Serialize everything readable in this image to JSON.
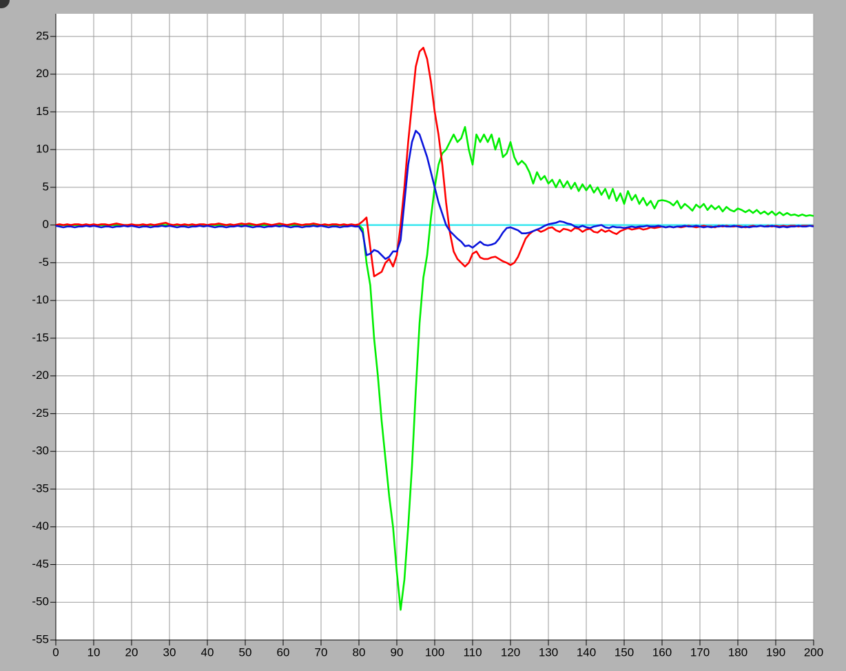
{
  "chart_data": {
    "type": "line",
    "xlim": [
      0,
      200
    ],
    "ylim": [
      -55,
      28
    ],
    "xticks": [
      0,
      10,
      20,
      30,
      40,
      50,
      60,
      70,
      80,
      90,
      100,
      110,
      120,
      130,
      140,
      150,
      160,
      170,
      180,
      190,
      200
    ],
    "yticks": [
      25,
      20,
      15,
      10,
      5,
      0,
      -5,
      -10,
      -15,
      -20,
      -25,
      -30,
      -35,
      -40,
      -45,
      -50,
      -55
    ],
    "grid": true,
    "x": [
      0,
      1,
      2,
      3,
      4,
      5,
      6,
      7,
      8,
      9,
      10,
      11,
      12,
      13,
      14,
      15,
      16,
      17,
      18,
      19,
      20,
      21,
      22,
      23,
      24,
      25,
      26,
      27,
      28,
      29,
      30,
      31,
      32,
      33,
      34,
      35,
      36,
      37,
      38,
      39,
      40,
      41,
      42,
      43,
      44,
      45,
      46,
      47,
      48,
      49,
      50,
      51,
      52,
      53,
      54,
      55,
      56,
      57,
      58,
      59,
      60,
      61,
      62,
      63,
      64,
      65,
      66,
      67,
      68,
      69,
      70,
      71,
      72,
      73,
      74,
      75,
      76,
      77,
      78,
      79,
      80,
      81,
      82,
      83,
      84,
      85,
      86,
      87,
      88,
      89,
      90,
      91,
      92,
      93,
      94,
      95,
      96,
      97,
      98,
      99,
      100,
      101,
      102,
      103,
      104,
      105,
      106,
      107,
      108,
      109,
      110,
      111,
      112,
      113,
      114,
      115,
      116,
      117,
      118,
      119,
      120,
      121,
      122,
      123,
      124,
      125,
      126,
      127,
      128,
      129,
      130,
      131,
      132,
      133,
      134,
      135,
      136,
      137,
      138,
      139,
      140,
      141,
      142,
      143,
      144,
      145,
      146,
      147,
      148,
      149,
      150,
      151,
      152,
      153,
      154,
      155,
      156,
      157,
      158,
      159,
      160,
      161,
      162,
      163,
      164,
      165,
      166,
      167,
      168,
      169,
      170,
      171,
      172,
      173,
      174,
      175,
      176,
      177,
      178,
      179,
      180,
      181,
      182,
      183,
      184,
      185,
      186,
      187,
      188,
      189,
      190,
      191,
      192,
      193,
      194,
      195,
      196,
      197,
      198,
      199,
      200
    ],
    "series": [
      {
        "color": "#40e8f0",
        "x": [
          80,
          200
        ],
        "values": [
          0,
          0
        ]
      },
      {
        "color": "#00ee00",
        "values": [
          0,
          0,
          0,
          0,
          0,
          0,
          0,
          0,
          0,
          0,
          0,
          0,
          0,
          0,
          0,
          0,
          0,
          0,
          0,
          0,
          0,
          0,
          0,
          0,
          0,
          0,
          0,
          0,
          0,
          0,
          0,
          0,
          0,
          0,
          0,
          0,
          0,
          0,
          0,
          0,
          0,
          0,
          0,
          0,
          0,
          0,
          0,
          0,
          0,
          0,
          0,
          0,
          0,
          0,
          0,
          0,
          0,
          0,
          0,
          0,
          0,
          0,
          0,
          0,
          0,
          0,
          0,
          0,
          0,
          0,
          0,
          0,
          0,
          0,
          0,
          0,
          0,
          0,
          0,
          0,
          0,
          -0.5,
          -5,
          -8,
          -15,
          -20,
          -26,
          -31,
          -36,
          -40,
          -46,
          -51,
          -47,
          -40,
          -32,
          -22,
          -13,
          -7,
          -4,
          1,
          5,
          8,
          9.5,
          10,
          11,
          12,
          11,
          11.5,
          13,
          10,
          8,
          12,
          11,
          12,
          11,
          12,
          10,
          11.5,
          9,
          9.5,
          11,
          9,
          8,
          8.5,
          8,
          7,
          5.5,
          7,
          6,
          6.5,
          5.5,
          6,
          5,
          6,
          5,
          5.8,
          4.8,
          5.6,
          4.5,
          5.4,
          4.6,
          5.3,
          4.3,
          5,
          4,
          4.8,
          3.5,
          4.8,
          3.2,
          4.2,
          2.8,
          4.5,
          3.3,
          4,
          2.8,
          3.6,
          2.6,
          3.2,
          2.2,
          3.2,
          3.3,
          3.2,
          3,
          2.6,
          3.2,
          2.2,
          2.8,
          2.4,
          1.9,
          2.7,
          2.3,
          2.8,
          2,
          2.6,
          2.1,
          2.5,
          1.8,
          2.4,
          2,
          1.8,
          2.2,
          2,
          1.7,
          2,
          1.6,
          2,
          1.5,
          1.8,
          1.4,
          1.8,
          1.3,
          1.7,
          1.3,
          1.6,
          1.3,
          1.4,
          1.2,
          1.4,
          1.2,
          1.3,
          1.2
        ]
      },
      {
        "color": "#ff0000",
        "values": [
          0,
          0.1,
          0,
          0.1,
          0,
          0.1,
          0.1,
          0,
          0.1,
          0,
          0.1,
          0,
          0.1,
          0.1,
          0,
          0.1,
          0.2,
          0.1,
          0,
          0,
          0.1,
          0,
          0,
          0.1,
          0,
          0.1,
          0,
          0.1,
          0.2,
          0.3,
          0.1,
          0,
          0.1,
          0,
          0.1,
          0,
          0.1,
          0,
          0.1,
          0.1,
          0,
          0.1,
          0.1,
          0.2,
          0.1,
          0,
          0.1,
          0,
          0.1,
          0.2,
          0.1,
          0.2,
          0.1,
          0,
          0.1,
          0.2,
          0.1,
          0,
          0.1,
          0.2,
          0.1,
          0,
          0.1,
          0.2,
          0.1,
          0,
          0.1,
          0.1,
          0.2,
          0.1,
          0,
          0.1,
          0,
          0.1,
          0.1,
          0,
          0.1,
          0,
          0.1,
          0,
          0.1,
          0.5,
          1,
          -3,
          -6.8,
          -6.5,
          -6.2,
          -5,
          -4.5,
          -5.5,
          -4,
          0,
          5,
          11,
          16,
          21,
          23,
          23.5,
          22,
          19,
          15,
          12,
          8,
          3,
          -1,
          -3.5,
          -4.5,
          -5,
          -5.5,
          -5,
          -3.8,
          -3.5,
          -4.3,
          -4.5,
          -4.5,
          -4.3,
          -4.2,
          -4.5,
          -4.8,
          -5,
          -5.3,
          -5,
          -4.2,
          -3,
          -1.8,
          -1.2,
          -0.8,
          -0.6,
          -0.9,
          -0.7,
          -0.4,
          -0.3,
          -0.7,
          -0.9,
          -0.5,
          -0.6,
          -0.8,
          -0.4,
          -0.5,
          -0.9,
          -0.6,
          -0.5,
          -0.9,
          -1,
          -0.6,
          -0.9,
          -0.7,
          -1,
          -1.2,
          -0.8,
          -0.6,
          -0.4,
          -0.6,
          -0.5,
          -0.4,
          -0.6,
          -0.5,
          -0.3,
          -0.4,
          -0.3,
          -0.2,
          -0.3,
          -0.2,
          -0.3,
          -0.2,
          -0.3,
          -0.2,
          -0.1,
          -0.2,
          -0.3,
          -0.2,
          -0.1,
          -0.2,
          -0.2,
          -0.3,
          -0.1,
          -0.2,
          -0.1,
          -0.2,
          -0.2,
          -0.1,
          -0.2,
          -0.3,
          -0.2,
          -0.1,
          -0.2,
          -0.1,
          -0.2,
          -0.1,
          -0.2,
          -0.1,
          -0.2,
          -0.1,
          -0.2,
          -0.1,
          -0.1,
          -0.2,
          -0.1,
          -0.1,
          -0.1,
          -0.1
        ]
      },
      {
        "color": "#0a14dc",
        "values": [
          -0.1,
          -0.2,
          -0.3,
          -0.2,
          -0.2,
          -0.3,
          -0.2,
          -0.2,
          -0.1,
          -0.2,
          -0.1,
          -0.2,
          -0.3,
          -0.2,
          -0.2,
          -0.3,
          -0.2,
          -0.2,
          -0.1,
          -0.2,
          -0.1,
          -0.2,
          -0.3,
          -0.2,
          -0.2,
          -0.3,
          -0.2,
          -0.2,
          -0.1,
          -0.2,
          -0.1,
          -0.2,
          -0.3,
          -0.2,
          -0.2,
          -0.3,
          -0.2,
          -0.2,
          -0.1,
          -0.2,
          -0.1,
          -0.2,
          -0.3,
          -0.2,
          -0.2,
          -0.3,
          -0.2,
          -0.2,
          -0.1,
          -0.2,
          -0.1,
          -0.2,
          -0.3,
          -0.2,
          -0.2,
          -0.3,
          -0.2,
          -0.2,
          -0.1,
          -0.2,
          -0.1,
          -0.2,
          -0.3,
          -0.2,
          -0.2,
          -0.3,
          -0.2,
          -0.2,
          -0.1,
          -0.2,
          -0.1,
          -0.2,
          -0.3,
          -0.2,
          -0.2,
          -0.3,
          -0.2,
          -0.2,
          -0.1,
          -0.2,
          -0.2,
          -1,
          -4,
          -3.8,
          -3.3,
          -3.5,
          -4,
          -4.5,
          -4.2,
          -3.5,
          -3.5,
          -2,
          3,
          8,
          11,
          12.5,
          12,
          10.5,
          9,
          7,
          5,
          3,
          1.5,
          0,
          -0.8,
          -1.3,
          -1.8,
          -2.2,
          -2.8,
          -2.7,
          -3,
          -2.6,
          -2.2,
          -2.6,
          -2.7,
          -2.6,
          -2.4,
          -1.8,
          -1,
          -0.4,
          -0.3,
          -0.5,
          -0.7,
          -1.1,
          -1.1,
          -1,
          -0.8,
          -0.6,
          -0.4,
          -0.1,
          0.1,
          0.2,
          0.3,
          0.5,
          0.4,
          0.2,
          0.1,
          -0.2,
          -0.3,
          -0.1,
          -0.3,
          -0.4,
          -0.2,
          -0.1,
          0,
          -0.3,
          -0.4,
          -0.2,
          -0.3,
          -0.3,
          -0.4,
          -0.3,
          -0.2,
          -0.3,
          -0.2,
          -0.2,
          -0.1,
          -0.2,
          -0.2,
          -0.1,
          -0.2,
          -0.3,
          -0.2,
          -0.3,
          -0.2,
          -0.2,
          -0.1,
          -0.2,
          -0.2,
          -0.1,
          -0.2,
          -0.3,
          -0.2,
          -0.3,
          -0.2,
          -0.2,
          -0.1,
          -0.2,
          -0.2,
          -0.1,
          -0.2,
          -0.3,
          -0.2,
          -0.3,
          -0.2,
          -0.2,
          -0.1,
          -0.2,
          -0.2,
          -0.1,
          -0.2,
          -0.3,
          -0.2,
          -0.3,
          -0.2,
          -0.2,
          -0.1,
          -0.2,
          -0.2,
          -0.1,
          -0.2
        ]
      }
    ]
  }
}
